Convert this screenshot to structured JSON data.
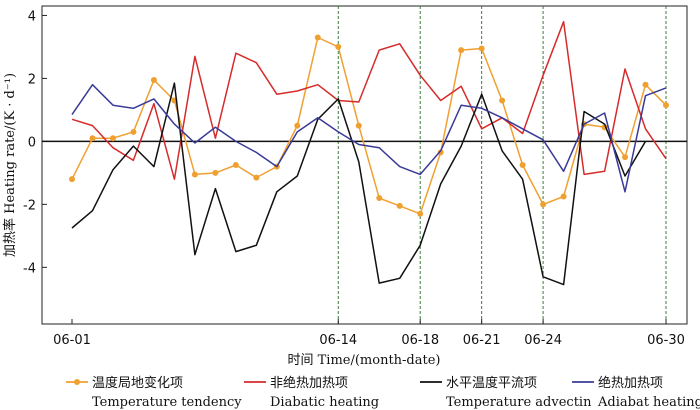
{
  "chart_data": {
    "type": "line",
    "x": [
      "06-01",
      "06-02",
      "06-03",
      "06-04",
      "06-05",
      "06-06",
      "06-07",
      "06-08",
      "06-09",
      "06-10",
      "06-11",
      "06-12",
      "06-13",
      "06-14",
      "06-15",
      "06-16",
      "06-17",
      "06-18",
      "06-19",
      "06-20",
      "06-21",
      "06-22",
      "06-23",
      "06-24",
      "06-25",
      "06-26",
      "06-27",
      "06-28",
      "06-29",
      "06-30"
    ],
    "x_ticks": [
      "06-01",
      "06-14",
      "06-18",
      "06-21",
      "06-24",
      "06-30"
    ],
    "dashed_vlines": [
      "06-14",
      "06-18",
      "06-21",
      "06-24",
      "06-30"
    ],
    "xlabel": "时间 Time/(month-date)",
    "ylabel": "加热率 Heating rate/(K · d⁻¹)",
    "ylim": [
      -5.8,
      4.3
    ],
    "y_ticks": [
      4,
      2,
      0,
      -2,
      -4
    ],
    "zero_line": true,
    "series": [
      {
        "name": "温度局地变化项",
        "name_en": "Temperature tendency",
        "color": "#f0a030",
        "marker": "circle",
        "values": [
          -1.2,
          0.1,
          0.1,
          0.3,
          1.95,
          1.3,
          -1.05,
          -1.0,
          -0.75,
          -1.15,
          -0.8,
          0.5,
          3.3,
          3.0,
          0.5,
          -1.8,
          -2.05,
          -2.3,
          -0.35,
          2.9,
          2.95,
          1.3,
          -0.75,
          -2.0,
          -1.75,
          0.55,
          0.45,
          -0.5,
          1.8,
          1.15
        ]
      },
      {
        "name": "非绝热加热项",
        "name_en": "Diabatic heating",
        "color": "#d62b2b",
        "marker": "none",
        "values": [
          0.7,
          0.5,
          -0.2,
          -0.6,
          1.2,
          -1.2,
          2.7,
          0.1,
          2.8,
          2.5,
          1.5,
          1.6,
          1.8,
          1.3,
          1.25,
          2.9,
          3.1,
          2.1,
          1.3,
          1.75,
          0.4,
          0.75,
          0.25,
          2.1,
          3.8,
          -1.05,
          -0.95,
          2.3,
          0.4,
          -0.55
        ]
      },
      {
        "name": "水平温度平流项",
        "name_en": "Temperature advectin",
        "color": "#111111",
        "marker": "none",
        "values": [
          -2.75,
          -2.2,
          -0.9,
          -0.15,
          -0.8,
          1.85,
          -3.6,
          -1.5,
          -3.5,
          -3.3,
          -1.6,
          -1.1,
          0.7,
          1.35,
          -0.65,
          -4.5,
          -4.35,
          -3.3,
          -1.35,
          -0.15,
          1.5,
          -0.3,
          -1.2,
          -4.3,
          -4.55,
          0.95,
          0.55,
          -1.1,
          0.0,
          null
        ]
      },
      {
        "name": "绝热加热项",
        "name_en": "Adiabat heating",
        "color": "#3a3a99",
        "marker": "none",
        "values": [
          0.85,
          1.8,
          1.15,
          1.05,
          1.35,
          0.55,
          -0.05,
          0.45,
          0.0,
          -0.35,
          -0.8,
          0.3,
          0.75,
          0.3,
          -0.1,
          -0.2,
          -0.8,
          -1.05,
          -0.3,
          1.15,
          1.05,
          0.75,
          0.4,
          0.05,
          -0.95,
          0.55,
          0.9,
          -1.6,
          1.45,
          1.7
        ]
      }
    ],
    "legend_position": "bottom"
  }
}
